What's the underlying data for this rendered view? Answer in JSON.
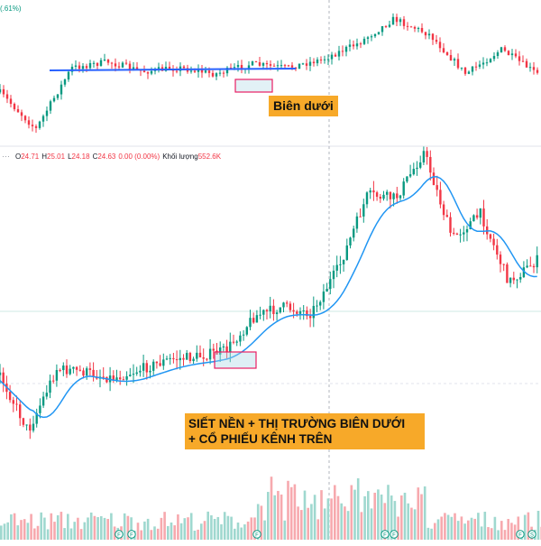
{
  "top_panel": {
    "change_text": "(.61%)",
    "annotation": "Biên dưới",
    "resistance_line_color": "#2962ff",
    "box_color": "#e91e63"
  },
  "legend": {
    "open_label": "O",
    "open_value": "24.71",
    "high_label": "H",
    "high_value": "25.01",
    "low_label": "L",
    "low_value": "24.18",
    "close_label": "C",
    "close_value": "24.63",
    "change": "0.00 (0.00%)",
    "volume_label": "Khối lượng",
    "volume_value": "552.6K"
  },
  "annotation_main": {
    "line1": "SIẾT NỀN + THỊ TRƯỜNG BIÊN DƯỚI",
    "line2": "+ CỔ PHIẾU KÊNH TRÊN"
  },
  "event_markers": [
    "F",
    "F",
    "F",
    "F",
    "F",
    "F",
    "S"
  ],
  "colors": {
    "up": "#089981",
    "down": "#f23645",
    "ma": "#2196f3",
    "volume_up": "#9fd8cf",
    "volume_down": "#f7a9ae",
    "annotation": "#f7a929"
  },
  "chart_data": [
    {
      "type": "candlestick",
      "panel": "market index (top)",
      "series": [
        {
          "name": "price",
          "trend_points_relative": [
            0.35,
            0.05,
            0.55,
            0.6,
            0.52,
            0.55,
            0.5,
            0.58,
            0.55,
            0.62,
            0.75,
            0.95,
            0.82,
            0.5,
            0.7,
            0.5
          ]
        }
      ]
    },
    {
      "type": "candlestick",
      "panel": "stock (bottom)",
      "ohlc_last": {
        "open": 24.71,
        "high": 25.01,
        "low": 24.18,
        "close": 24.63
      },
      "volume_last": "552.6K",
      "series": [
        {
          "name": "price",
          "trend_points_relative": [
            0.28,
            0.1,
            0.3,
            0.29,
            0.27,
            0.3,
            0.33,
            0.34,
            0.36,
            0.47,
            0.5,
            0.48,
            0.63,
            0.86,
            0.85,
            1.0,
            0.72,
            0.8,
            0.58,
            0.65
          ]
        },
        {
          "name": "moving average"
        }
      ]
    }
  ]
}
